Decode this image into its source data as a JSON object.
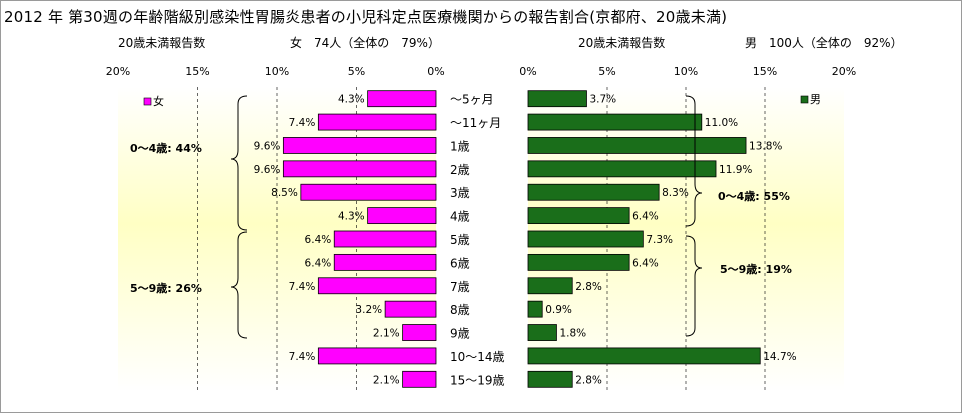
{
  "title": "2012 年 第30週の年齢階級別感染性胃腸炎患者の小児科定点医療機関からの報告割合(京都府、20歳未満)",
  "female_header": {
    "label": "20歳未満報告数",
    "summary": "女　74人（全体の　79%）"
  },
  "male_header": {
    "label": "20歳未満報告数",
    "summary": "男　100人（全体の　92%）"
  },
  "colors": {
    "female": "#ff00ff",
    "male": "#1a6e1a",
    "bg_yellow": "#ffffc8"
  },
  "chart_data": [
    {
      "type": "bar",
      "orientation": "horizontal",
      "direction": "right-to-left",
      "legend": "女",
      "legend_position": "top-left",
      "categories": [
        "～5ヶ月",
        "～11ヶ月",
        "1歳",
        "2歳",
        "3歳",
        "4歳",
        "5歳",
        "6歳",
        "7歳",
        "8歳",
        "9歳",
        "10～14歳",
        "15～19歳"
      ],
      "values": [
        4.3,
        7.4,
        9.6,
        9.6,
        8.5,
        4.3,
        6.4,
        6.4,
        7.4,
        3.2,
        2.1,
        7.4,
        2.1
      ],
      "value_labels": [
        "4.3%",
        "7.4%",
        "9.6%",
        "9.6%",
        "8.5%",
        "4.3%",
        "6.4%",
        "6.4%",
        "7.4%",
        "3.2%",
        "2.1%",
        "7.4%",
        "2.1%"
      ],
      "xlim": [
        0,
        20
      ],
      "ticks": [
        20,
        15,
        10,
        5,
        0
      ],
      "tick_labels": [
        "20%",
        "15%",
        "10%",
        "5%",
        "0%"
      ],
      "grid": true,
      "annotations": [
        "0～4歳: 44%",
        "5～9歳: 26%"
      ]
    },
    {
      "type": "bar",
      "orientation": "horizontal",
      "direction": "left-to-right",
      "legend": "男",
      "legend_position": "top-right",
      "categories": [
        "～5ヶ月",
        "～11ヶ月",
        "1歳",
        "2歳",
        "3歳",
        "4歳",
        "5歳",
        "6歳",
        "7歳",
        "8歳",
        "9歳",
        "10～14歳",
        "15～19歳"
      ],
      "values": [
        3.7,
        11.0,
        13.8,
        11.9,
        8.3,
        6.4,
        7.3,
        6.4,
        2.8,
        0.9,
        1.8,
        14.7,
        2.8
      ],
      "value_labels": [
        "3.7%",
        "11.0%",
        "13.8%",
        "11.9%",
        "8.3%",
        "6.4%",
        "7.3%",
        "6.4%",
        "2.8%",
        "0.9%",
        "1.8%",
        "14.7%",
        "2.8%"
      ],
      "xlim": [
        0,
        20
      ],
      "ticks": [
        0,
        5,
        10,
        15,
        20
      ],
      "tick_labels": [
        "0%",
        "5%",
        "10%",
        "15%",
        "20%"
      ],
      "grid": true,
      "annotations": [
        "0～4歳: 55%",
        "5～9歳: 19%"
      ]
    }
  ]
}
